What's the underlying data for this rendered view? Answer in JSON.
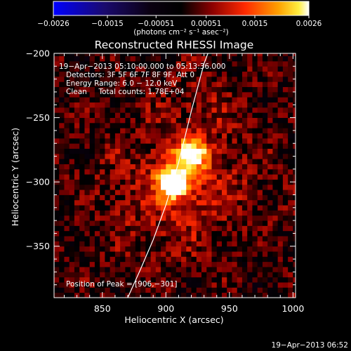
{
  "chart_data": {
    "type": "heatmap",
    "title": "Reconstructed RHESSI Image",
    "xlabel": "Heliocentric X (arcsec)",
    "ylabel": "Heliocentric Y (arcsec)",
    "xlim": [
      812,
      1002
    ],
    "ylim": [
      -390,
      -200
    ],
    "xticks": [
      850,
      900,
      950,
      1000
    ],
    "xtick_labels": [
      "850",
      "900",
      "950",
      "1000"
    ],
    "yticks": [
      -250,
      -300,
      -350,
      -200
    ],
    "ytick_labels": [
      "−250",
      "−300",
      "−350",
      "−200"
    ],
    "colorbar": {
      "range": [
        -0.0026,
        0.0026
      ],
      "ticks": [
        -0.0026,
        -0.0015,
        -0.00051,
        0.00051,
        0.0015,
        0.0026
      ],
      "tick_labels": [
        "−0.0026",
        "−0.0015",
        "−0.00051",
        "0.00051",
        "0.0015",
        "0.0026"
      ],
      "unit": "(photons cm⁻² s⁻¹ asec⁻²)",
      "colormap": "black-body (blue negative → black → red → yellow → white)"
    },
    "annotations": [
      "19−Apr−2013 05:10:00.000 to 05:13:36.000",
      "Detectors: 3F 5F 6F 7F 8F 9F, Att 0",
      "Energy Range: 6.0 − 12.0 keV",
      "Clean     Total counts: 1.78E+04"
    ],
    "peak_label": "Position of Peak = [906,−301]",
    "peak_position": [
      906,
      -301
    ],
    "sources": [
      {
        "x": 906,
        "y": -301,
        "sigma": 8,
        "amplitude": 0.0026
      },
      {
        "x": 921,
        "y": -278,
        "sigma": 8,
        "amplitude": 0.0019
      },
      {
        "x": 914,
        "y": -290,
        "sigma": 15,
        "amplitude": 0.0008
      },
      {
        "x": 925,
        "y": -245,
        "sigma": 25,
        "amplitude": 0.0004
      },
      {
        "x": 945,
        "y": -300,
        "sigma": 30,
        "amplitude": 0.0004
      },
      {
        "x": 880,
        "y": -300,
        "sigma": 30,
        "amplitude": 0.0004
      },
      {
        "x": 900,
        "y": -335,
        "sigma": 25,
        "amplitude": 0.00035
      }
    ],
    "limb_curve": {
      "x": [
        870,
        880,
        890,
        900,
        910,
        920,
        930,
        935
      ],
      "y": [
        -390,
        -368,
        -345,
        -318,
        -285,
        -245,
        -208,
        -195
      ]
    },
    "pixel_size_arcsec": 4,
    "grid": false
  },
  "footer": {
    "timestamp": "19−Apr−2013 06:52"
  }
}
